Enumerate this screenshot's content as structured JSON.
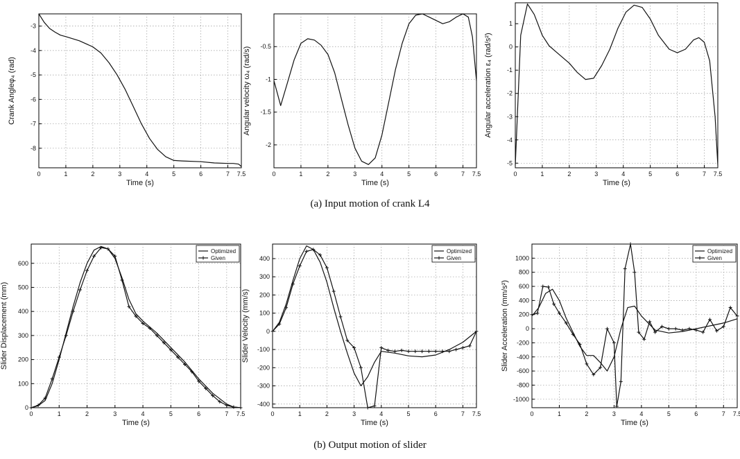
{
  "captions": {
    "a": "(a) Input motion of crank L4",
    "b": "(b) Output motion of slider"
  },
  "chart_data": [
    {
      "type": "line",
      "row": "a",
      "xlabel": "Time (s)",
      "ylabel": "Crank Angleφ₄ (rad)",
      "xlim": [
        0,
        7.5
      ],
      "ylim": [
        -8.8,
        -2.5
      ],
      "grid": true,
      "xticks": [
        0,
        1,
        2,
        3,
        4,
        5,
        6,
        7,
        7.5
      ],
      "xticklabels": [
        "0",
        "1",
        "2",
        "3",
        "4",
        "5",
        "6",
        "7",
        "7.5"
      ],
      "yticks": [
        -3,
        -4,
        -5,
        -6,
        -7,
        -8
      ],
      "yticklabels": [
        "-3",
        "-4",
        "-5",
        "-6",
        "-7",
        "-8"
      ],
      "series": [
        {
          "marker": false,
          "x": [
            0,
            0.2,
            0.4,
            0.6,
            0.8,
            1,
            1.5,
            2,
            2.3,
            2.6,
            2.9,
            3.2,
            3.5,
            3.8,
            4.1,
            4.4,
            4.7,
            5,
            5.3,
            6,
            6.5,
            7,
            7.2,
            7.4,
            7.5
          ],
          "y": [
            -2.5,
            -2.85,
            -3.1,
            -3.25,
            -3.37,
            -3.43,
            -3.6,
            -3.85,
            -4.1,
            -4.5,
            -5.0,
            -5.6,
            -6.3,
            -7.0,
            -7.6,
            -8.05,
            -8.35,
            -8.5,
            -8.52,
            -8.55,
            -8.6,
            -8.62,
            -8.62,
            -8.65,
            -8.75
          ]
        }
      ]
    },
    {
      "type": "line",
      "row": "a",
      "xlabel": "Time (s)",
      "ylabel": "Angular velocity ω₄ (rad/s)",
      "xlim": [
        0,
        7.5
      ],
      "ylim": [
        -2.35,
        0
      ],
      "grid": true,
      "xticks": [
        0,
        1,
        2,
        3,
        4,
        5,
        6,
        7,
        7.5
      ],
      "xticklabels": [
        "0",
        "1",
        "2",
        "3",
        "4",
        "5",
        "6",
        "7",
        "7.5"
      ],
      "yticks": [
        -0.5,
        -1,
        -1.5,
        -2
      ],
      "yticklabels": [
        "-0.5",
        "-1",
        "-1.5",
        "-2"
      ],
      "series": [
        {
          "marker": false,
          "x": [
            0,
            0.25,
            0.5,
            0.75,
            1,
            1.25,
            1.5,
            1.75,
            2,
            2.25,
            2.5,
            2.75,
            3,
            3.25,
            3.5,
            3.75,
            4,
            4.25,
            4.5,
            4.75,
            5,
            5.25,
            5.5,
            5.75,
            6,
            6.25,
            6.5,
            6.75,
            7,
            7.2,
            7.35,
            7.5
          ],
          "y": [
            -1.02,
            -1.4,
            -1.05,
            -0.7,
            -0.45,
            -0.38,
            -0.4,
            -0.48,
            -0.62,
            -0.9,
            -1.3,
            -1.7,
            -2.05,
            -2.25,
            -2.3,
            -2.2,
            -1.85,
            -1.35,
            -0.85,
            -0.45,
            -0.15,
            -0.02,
            0,
            -0.05,
            -0.1,
            -0.15,
            -0.12,
            -0.05,
            0,
            -0.05,
            -0.35,
            -1.02
          ]
        }
      ]
    },
    {
      "type": "line",
      "row": "a",
      "xlabel": "Time (s)",
      "ylabel": "Angular acceleration ε₄ (rad/s²)",
      "xlim": [
        0,
        7.5
      ],
      "ylim": [
        -5.2,
        1.9
      ],
      "grid": true,
      "xticks": [
        0,
        1,
        2,
        3,
        4,
        5,
        6,
        7,
        7.5
      ],
      "xticklabels": [
        "0",
        "1",
        "2",
        "3",
        "4",
        "5",
        "6",
        "7",
        "7.5"
      ],
      "yticks": [
        1,
        0,
        -1,
        -2,
        -3,
        -4,
        -5
      ],
      "yticklabels": [
        "1",
        "0",
        "-1",
        "-2",
        "-3",
        "-4",
        "-5"
      ],
      "series": [
        {
          "marker": false,
          "x": [
            0,
            0.2,
            0.45,
            0.7,
            1,
            1.25,
            1.5,
            2,
            2.3,
            2.6,
            2.9,
            3.2,
            3.5,
            3.8,
            4.1,
            4.4,
            4.7,
            5,
            5.3,
            5.7,
            6,
            6.3,
            6.6,
            6.8,
            7,
            7.2,
            7.4,
            7.5
          ],
          "y": [
            -5.1,
            0.5,
            1.85,
            1.4,
            0.5,
            0.05,
            -0.2,
            -0.7,
            -1.1,
            -1.4,
            -1.35,
            -0.8,
            -0.1,
            0.8,
            1.5,
            1.8,
            1.7,
            1.2,
            0.5,
            -0.1,
            -0.25,
            -0.1,
            0.3,
            0.4,
            0.2,
            -0.6,
            -3.0,
            -5.1
          ]
        }
      ]
    },
    {
      "type": "line",
      "row": "b",
      "xlabel": "Time (s)",
      "ylabel": "Slider Displacement (mm)",
      "xlim": [
        0,
        7.5
      ],
      "ylim": [
        0,
        680
      ],
      "grid": true,
      "xticks": [
        0,
        1,
        2,
        3,
        4,
        5,
        6,
        7,
        7.5
      ],
      "xticklabels": [
        "0",
        "1",
        "2",
        "3",
        "4",
        "5",
        "6",
        "7",
        "7.5"
      ],
      "yticks": [
        0,
        100,
        200,
        300,
        400,
        500,
        600
      ],
      "yticklabels": [
        "0",
        "100",
        "200",
        "300",
        "400",
        "500",
        "600"
      ],
      "legend": {
        "position": "top-right",
        "entries": [
          "Optimized",
          "Given"
        ]
      },
      "series": [
        {
          "name": "Optimized",
          "marker": false,
          "x": [
            0,
            0.25,
            0.5,
            0.75,
            1,
            1.25,
            1.5,
            1.75,
            2,
            2.25,
            2.5,
            2.75,
            3,
            3.25,
            3.5,
            3.75,
            4,
            4.5,
            5,
            5.5,
            6,
            6.5,
            7,
            7.25,
            7.5
          ],
          "y": [
            0,
            8,
            30,
            100,
            200,
            310,
            420,
            520,
            600,
            655,
            670,
            660,
            620,
            540,
            450,
            390,
            360,
            310,
            250,
            190,
            120,
            60,
            15,
            3,
            0
          ]
        },
        {
          "name": "Given",
          "marker": true,
          "x": [
            0,
            0.25,
            0.5,
            0.75,
            1,
            1.25,
            1.5,
            1.75,
            2,
            2.25,
            2.5,
            2.75,
            3,
            3.25,
            3.5,
            3.75,
            4,
            4.25,
            4.5,
            4.75,
            5,
            5.25,
            5.5,
            5.75,
            6,
            6.25,
            6.5,
            6.75,
            7,
            7.25,
            7.5
          ],
          "y": [
            0,
            10,
            40,
            120,
            210,
            300,
            400,
            490,
            570,
            630,
            665,
            660,
            630,
            530,
            420,
            380,
            350,
            330,
            300,
            270,
            240,
            210,
            180,
            150,
            110,
            80,
            50,
            25,
            10,
            3,
            0
          ]
        }
      ]
    },
    {
      "type": "line",
      "row": "b",
      "xlabel": "Time (s)",
      "ylabel": "Slider Velocity (mm/s)",
      "xlim": [
        0,
        7.5
      ],
      "ylim": [
        -420,
        480
      ],
      "grid": true,
      "xticks": [
        0,
        1,
        2,
        3,
        4,
        5,
        6,
        7,
        7.5
      ],
      "xticklabels": [
        "0",
        "1",
        "2",
        "3",
        "4",
        "5",
        "6",
        "7",
        "7.5"
      ],
      "yticks": [
        400,
        300,
        200,
        100,
        0,
        -100,
        -200,
        -300,
        -400
      ],
      "yticklabels": [
        "400",
        "300",
        "200",
        "100",
        "0",
        "-100",
        "-200",
        "-300",
        "-400"
      ],
      "legend": {
        "position": "top-right",
        "entries": [
          "Optimized",
          "Given"
        ]
      },
      "series": [
        {
          "name": "Optimized",
          "marker": false,
          "x": [
            0,
            0.25,
            0.5,
            0.75,
            1,
            1.25,
            1.5,
            1.75,
            2,
            2.25,
            2.5,
            2.75,
            3,
            3.25,
            3.5,
            3.75,
            4,
            4.5,
            5,
            5.5,
            6,
            6.5,
            7,
            7.5
          ],
          "y": [
            0,
            50,
            150,
            280,
            400,
            470,
            450,
            380,
            270,
            130,
            0,
            -120,
            -230,
            -300,
            -250,
            -170,
            -110,
            -120,
            -135,
            -140,
            -130,
            -100,
            -60,
            0
          ]
        },
        {
          "name": "Given",
          "marker": true,
          "x": [
            0,
            0.25,
            0.5,
            0.75,
            1,
            1.25,
            1.5,
            1.75,
            2,
            2.25,
            2.5,
            2.75,
            3,
            3.25,
            3.5,
            3.75,
            4,
            4.25,
            4.5,
            4.75,
            5,
            5.25,
            5.5,
            5.75,
            6,
            6.25,
            6.5,
            6.75,
            7,
            7.25,
            7.5
          ],
          "y": [
            0,
            40,
            130,
            260,
            360,
            440,
            450,
            420,
            350,
            220,
            80,
            -50,
            -90,
            -200,
            -420,
            -410,
            -90,
            -105,
            -110,
            -105,
            -110,
            -110,
            -110,
            -110,
            -110,
            -110,
            -110,
            -100,
            -90,
            -80,
            0
          ]
        }
      ]
    },
    {
      "type": "line",
      "row": "b",
      "xlabel": "Time (s)",
      "ylabel": "Slider Acceleration (mm/s²)",
      "xlim": [
        0,
        7.5
      ],
      "ylim": [
        -1120,
        1200
      ],
      "grid": true,
      "xticks": [
        0,
        1,
        2,
        3,
        4,
        5,
        6,
        7,
        7.5
      ],
      "xticklabels": [
        "0",
        "1",
        "2",
        "3",
        "4",
        "5",
        "6",
        "7",
        "7.5"
      ],
      "yticks": [
        1000,
        800,
        600,
        400,
        200,
        0,
        -200,
        -400,
        -600,
        -800,
        -1000
      ],
      "yticklabels": [
        "1000",
        "800",
        "600",
        "400",
        "200",
        "0",
        "-200",
        "-400",
        "-600",
        "-800",
        "-1000"
      ],
      "legend": {
        "position": "top-right",
        "entries": [
          "Optimized",
          "Given"
        ]
      },
      "series": [
        {
          "name": "Optimized",
          "marker": false,
          "x": [
            0,
            0.25,
            0.5,
            0.75,
            1,
            1.25,
            1.5,
            1.75,
            2,
            2.25,
            2.5,
            2.75,
            3,
            3.25,
            3.5,
            3.75,
            4,
            4.5,
            5,
            5.5,
            6,
            6.5,
            7,
            7.5
          ],
          "y": [
            180,
            300,
            500,
            560,
            400,
            150,
            -50,
            -250,
            -380,
            -380,
            -480,
            -600,
            -400,
            0,
            300,
            320,
            180,
            -20,
            -60,
            -40,
            0,
            40,
            80,
            140
          ]
        },
        {
          "name": "Given",
          "marker": true,
          "x": [
            0,
            0.2,
            0.4,
            0.6,
            0.8,
            1,
            1.25,
            1.5,
            1.75,
            2,
            2.25,
            2.5,
            2.75,
            3,
            3.1,
            3.25,
            3.4,
            3.6,
            3.75,
            3.9,
            4.1,
            4.3,
            4.5,
            4.75,
            5,
            5.25,
            5.5,
            5.75,
            6,
            6.25,
            6.5,
            6.75,
            7,
            7.25,
            7.5
          ],
          "y": [
            200,
            220,
            600,
            590,
            350,
            220,
            80,
            -80,
            -220,
            -500,
            -650,
            -550,
            0,
            -200,
            -1100,
            -750,
            850,
            1200,
            800,
            -50,
            -150,
            100,
            -50,
            30,
            0,
            0,
            -20,
            0,
            -20,
            -50,
            130,
            -30,
            30,
            300,
            180
          ]
        }
      ]
    }
  ]
}
